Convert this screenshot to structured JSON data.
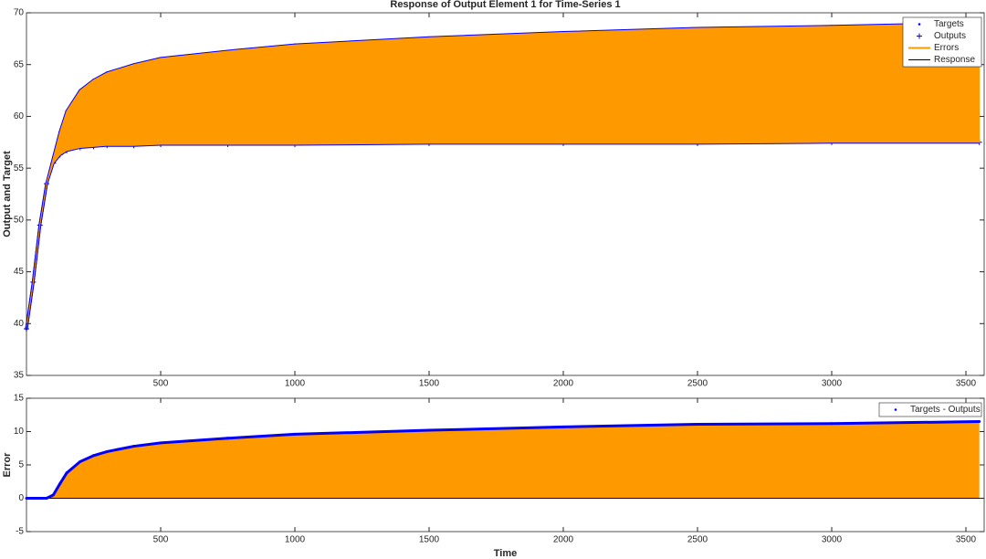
{
  "chart_data": [
    {
      "type": "line",
      "title": "Response of Output Element 1 for Time-Series 1",
      "y_label": "Output and Target",
      "x": [
        0,
        25,
        50,
        75,
        100,
        125,
        150,
        200,
        250,
        300,
        400,
        500,
        750,
        1000,
        1500,
        2000,
        2500,
        3000,
        3550
      ],
      "series": [
        {
          "name": "Targets",
          "color": "#0000ff",
          "style": "dots",
          "values": [
            39.5,
            44,
            49.5,
            53.5,
            56,
            58.5,
            60.5,
            62.5,
            63.5,
            64.2,
            65,
            65.6,
            66.3,
            66.9,
            67.6,
            68.1,
            68.5,
            68.7,
            69.0
          ]
        },
        {
          "name": "Outputs",
          "color": "#0000ff",
          "style": "plus",
          "values": [
            39.5,
            44,
            49.5,
            53.5,
            55.5,
            56.3,
            56.7,
            57.0,
            57.1,
            57.2,
            57.2,
            57.3,
            57.3,
            57.3,
            57.4,
            57.4,
            57.4,
            57.5,
            57.5
          ]
        },
        {
          "name": "Errors",
          "color": "#ff9900",
          "style": "band",
          "values": [
            0,
            0,
            0,
            0,
            0.5,
            2.2,
            3.8,
            5.5,
            6.4,
            7.0,
            7.8,
            8.3,
            9.0,
            9.6,
            10.2,
            10.7,
            11.1,
            11.2,
            11.5
          ]
        },
        {
          "name": "Response",
          "color": "#000000",
          "style": "line"
        }
      ],
      "xlim": [
        0,
        3568
      ],
      "xticks": [
        500,
        1000,
        1500,
        2000,
        2500,
        3000,
        3500
      ],
      "ylim": [
        35,
        70
      ],
      "yticks": [
        35,
        40,
        45,
        50,
        55,
        60,
        65,
        70
      ],
      "grid": false,
      "legend": "upper-right"
    },
    {
      "type": "line",
      "y_label": "Error",
      "x_label": "Time",
      "x": [
        0,
        25,
        50,
        75,
        100,
        125,
        150,
        200,
        250,
        300,
        400,
        500,
        750,
        1000,
        1500,
        2000,
        2500,
        3000,
        3550
      ],
      "series": [
        {
          "name": "Targets - Outputs",
          "color": "#0000ff",
          "area_color": "#ff9900",
          "style": "dots",
          "values": [
            0,
            0,
            0,
            0,
            0.5,
            2.2,
            3.8,
            5.5,
            6.4,
            7.0,
            7.8,
            8.3,
            9.0,
            9.6,
            10.2,
            10.7,
            11.1,
            11.2,
            11.5
          ]
        }
      ],
      "xlim": [
        0,
        3568
      ],
      "xticks": [
        500,
        1000,
        1500,
        2000,
        2500,
        3000,
        3500
      ],
      "ylim": [
        -5,
        15
      ],
      "yticks": [
        -5,
        0,
        5,
        10,
        15
      ],
      "grid": false,
      "legend": "upper-right"
    }
  ]
}
